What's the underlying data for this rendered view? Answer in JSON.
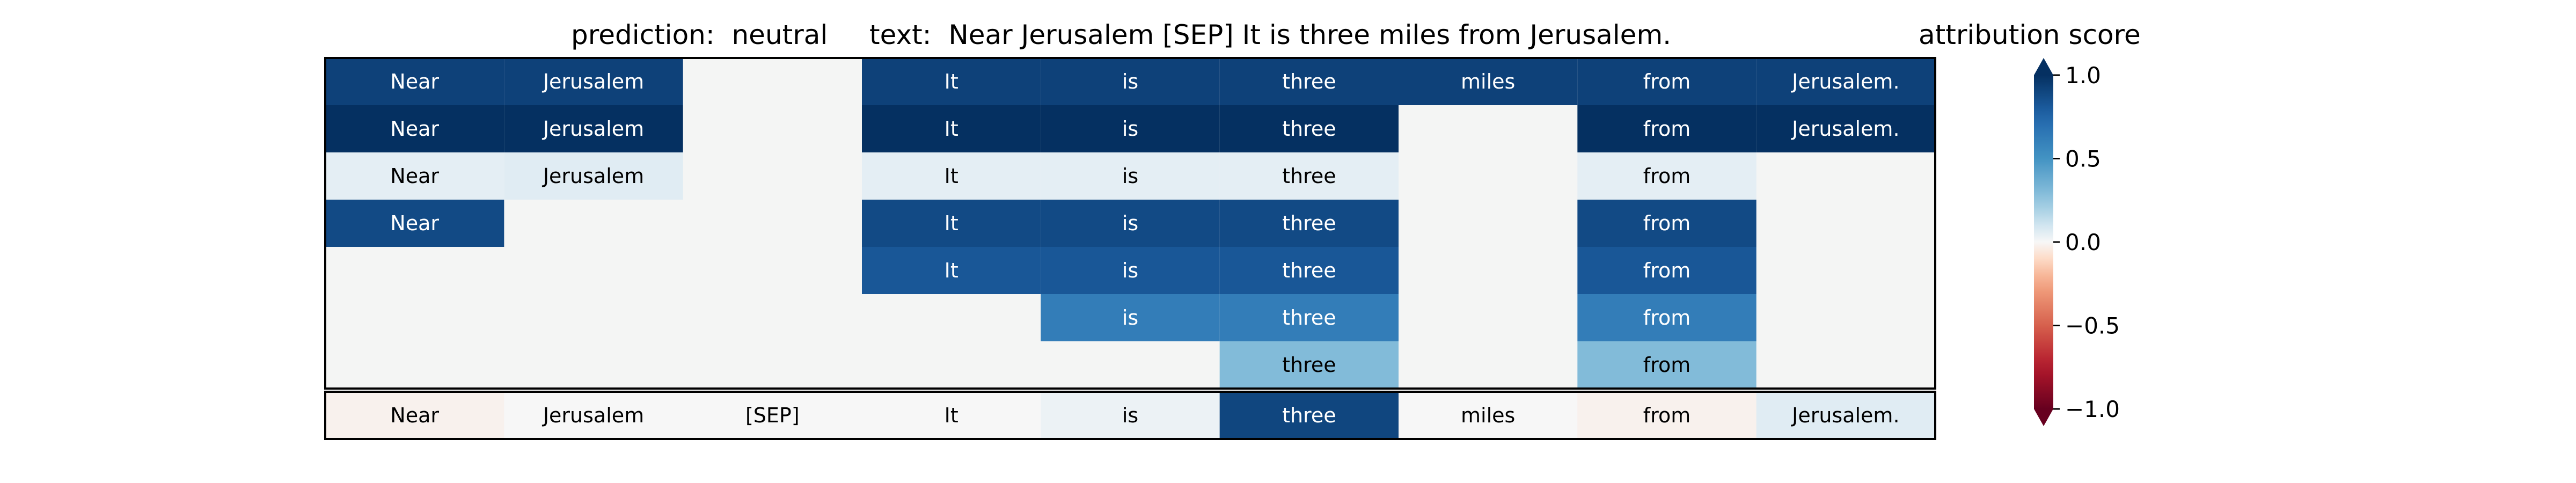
{
  "figure": {
    "prediction_label": "prediction:  neutral",
    "text_label": "text:  Near Jerusalem [SEP] It is three miles from Jerusalem."
  },
  "colors": {
    "cmap_low": "#67001f",
    "cmap_mid": "#f7f7f7",
    "cmap_high": "#053061",
    "hidden_cell": "#f4f5f4"
  },
  "chart_data": {
    "type": "heatmap",
    "colorbar_title": "attribution score",
    "colorbar_ticks": [
      "1.0",
      "0.5",
      "0.0",
      "−0.5",
      "−1.0"
    ],
    "colorbar_tick_values": [
      1.0,
      0.5,
      0.0,
      -0.5,
      -1.0
    ],
    "vmin": -1.0,
    "vmax": 1.0,
    "tokens": [
      "Near",
      "Jerusalem",
      "[SEP]",
      "It",
      "is",
      "three",
      "miles",
      "from",
      "Jerusalem."
    ],
    "rows": [
      [
        0.92,
        0.92,
        null,
        0.92,
        0.92,
        0.92,
        0.92,
        0.92,
        0.92
      ],
      [
        1.0,
        1.0,
        null,
        1.0,
        1.0,
        1.0,
        null,
        1.0,
        1.0
      ],
      [
        0.05,
        0.06,
        null,
        0.05,
        0.05,
        0.05,
        null,
        0.05,
        null
      ],
      [
        0.88,
        null,
        null,
        0.88,
        0.88,
        0.88,
        null,
        0.88,
        null
      ],
      [
        null,
        null,
        null,
        0.82,
        0.82,
        0.82,
        null,
        0.82,
        null
      ],
      [
        null,
        null,
        null,
        null,
        0.62,
        0.62,
        null,
        0.62,
        null
      ],
      [
        null,
        null,
        null,
        null,
        null,
        0.3,
        null,
        0.3,
        null
      ]
    ],
    "summary_row": [
      -0.02,
      0.0,
      0.0,
      0.0,
      0.03,
      0.9,
      0.0,
      -0.02,
      0.06
    ]
  }
}
